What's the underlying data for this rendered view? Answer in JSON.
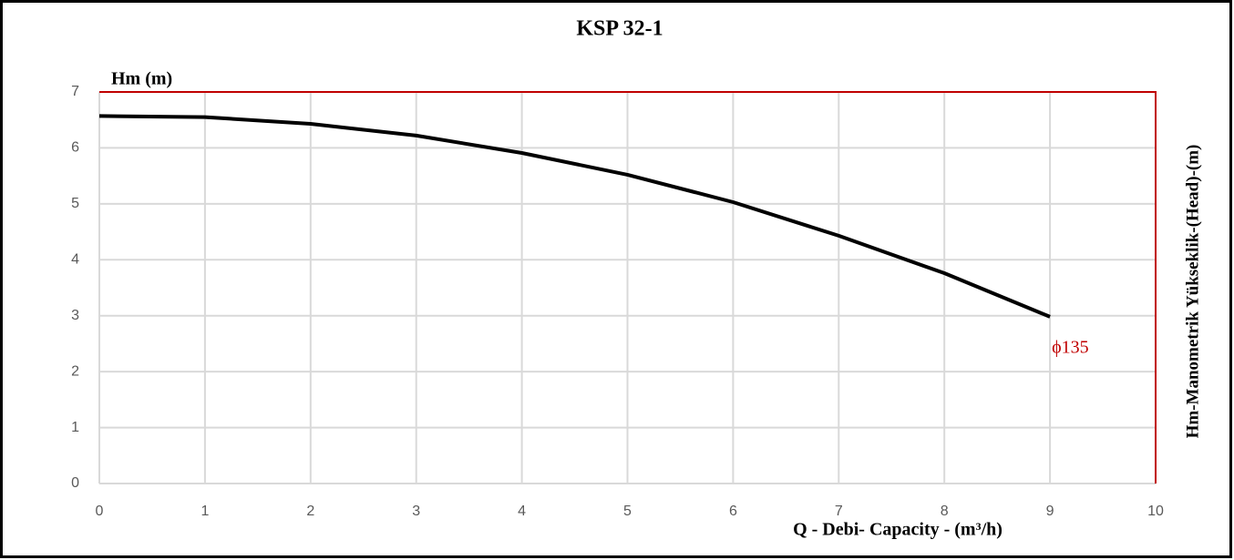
{
  "chart_data": {
    "type": "line",
    "title": "KSP  32-1",
    "y_label": "Hm (m)",
    "y_label_right": "Hm-Manometrik Yükseklik-(Head)-(m)",
    "x_label": "Q - Debi- Capacity - (m³/h)",
    "x": [
      0,
      1,
      2,
      3,
      4,
      5,
      6,
      7,
      8,
      9
    ],
    "series": [
      {
        "name": "ϕ135",
        "color": "#000000",
        "label_color": "#c00000",
        "values": [
          6.57,
          6.55,
          6.43,
          6.22,
          5.91,
          5.52,
          5.03,
          4.43,
          3.76,
          2.98
        ]
      }
    ],
    "xlim": [
      0,
      10
    ],
    "xticks": [
      0,
      1,
      2,
      3,
      4,
      5,
      6,
      7,
      8,
      9,
      10
    ],
    "ylim": [
      0,
      7
    ],
    "yticks": [
      0,
      1,
      2,
      3,
      4,
      5,
      6,
      7
    ],
    "grid": true,
    "frame_color": "#c00000"
  }
}
